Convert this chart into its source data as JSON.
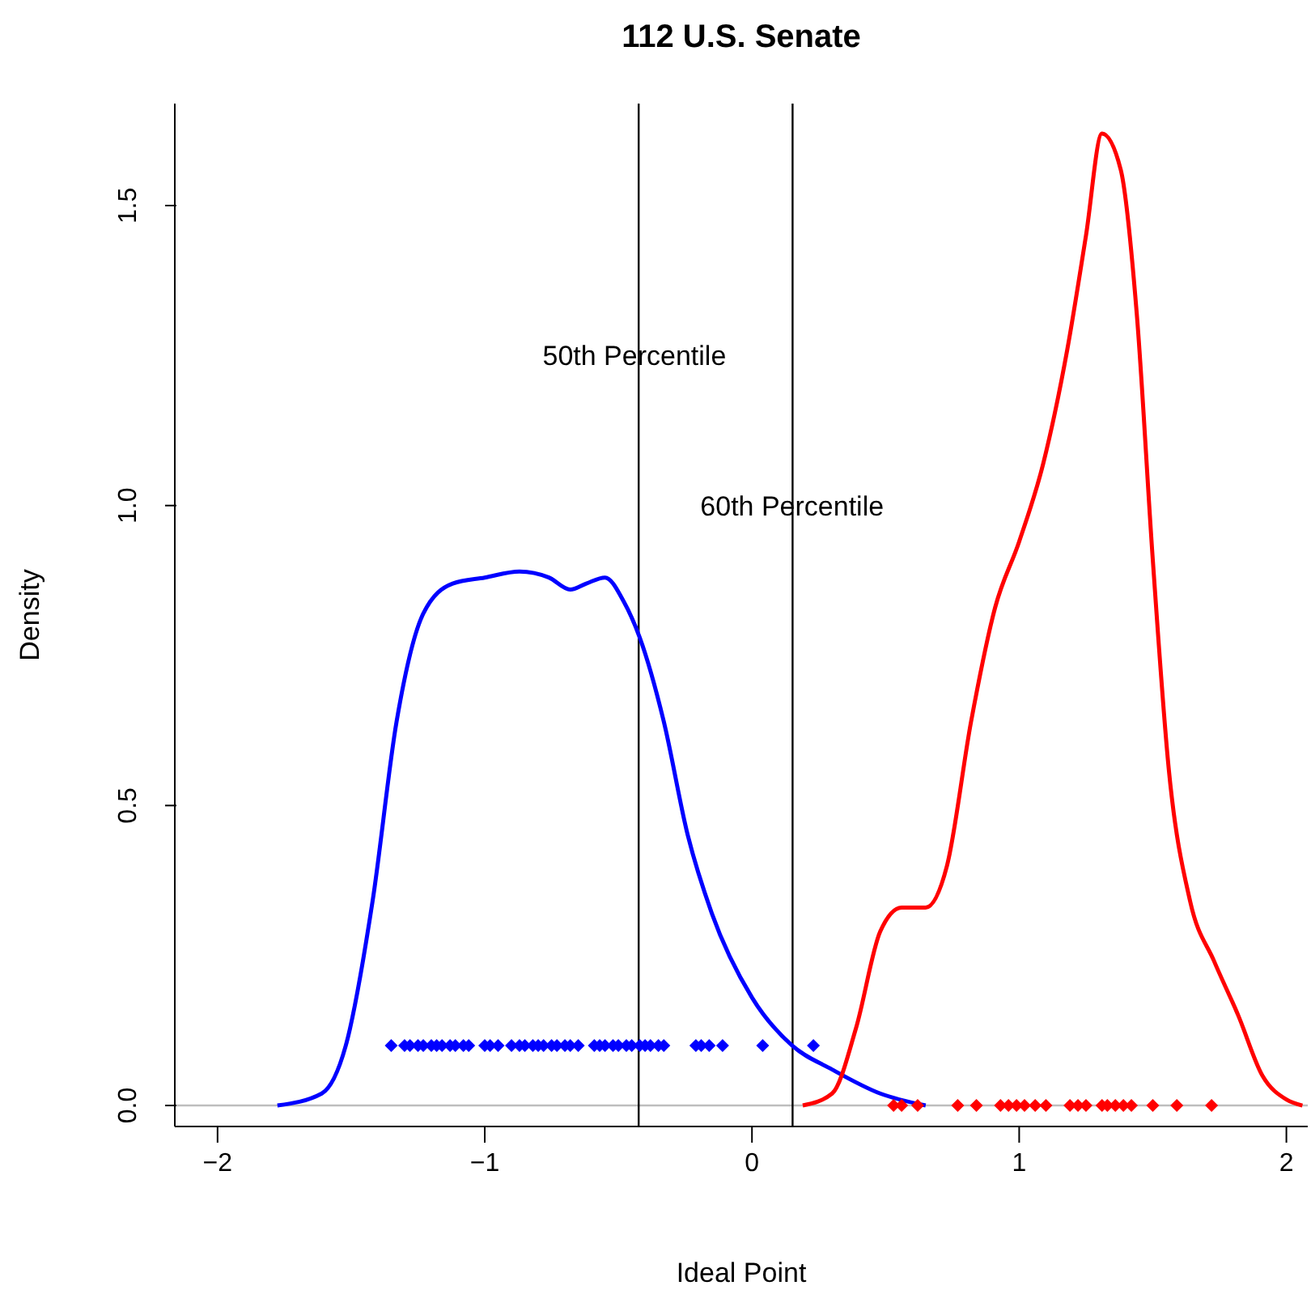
{
  "chart_data": {
    "type": "line",
    "title": "112 U.S. Senate",
    "xlabel": "Ideal Point",
    "ylabel": "Density",
    "xlim": [
      -2.16,
      2.08
    ],
    "xticks": [
      {
        "value": -2,
        "label": "−2"
      },
      {
        "value": -1,
        "label": "−1"
      },
      0,
      1,
      2
    ],
    "ylim": [
      -0.035,
      1.67
    ],
    "yticks": [
      {
        "value": 0,
        "label": "0.0"
      },
      {
        "value": 0.5,
        "label": "0.5"
      },
      {
        "value": 1,
        "label": "1.0"
      },
      {
        "value": 1.5,
        "label": "1.5"
      }
    ],
    "series": [
      {
        "color": "#0000ff",
        "marker": "none",
        "x": [
          -1.776,
          -1.61,
          -1.52,
          -1.42,
          -1.33,
          -1.23,
          -1.12,
          -1.0,
          -0.87,
          -0.76,
          -0.68,
          -0.62,
          -0.55,
          -0.48,
          -0.42,
          -0.33,
          -0.24,
          -0.15,
          0,
          0.15,
          0.3,
          0.48,
          0.65
        ],
        "values": [
          0,
          0.02,
          0.1,
          0.34,
          0.64,
          0.82,
          0.87,
          0.88,
          0.89,
          0.88,
          0.86,
          0.87,
          0.88,
          0.84,
          0.78,
          0.64,
          0.45,
          0.32,
          0.18,
          0.1,
          0.06,
          0.02,
          0
        ]
      },
      {
        "color": "#ff0000",
        "marker": "none",
        "x": [
          0.19,
          0.3,
          0.39,
          0.48,
          0.56,
          0.65,
          0.73,
          0.82,
          0.91,
          1.0,
          1.09,
          1.18,
          1.25,
          1.31,
          1.38,
          1.44,
          1.5,
          1.56,
          1.64,
          1.73,
          1.82,
          1.91,
          2.0,
          2.06
        ],
        "values": [
          0,
          0.02,
          0.13,
          0.29,
          0.33,
          0.33,
          0.4,
          0.64,
          0.83,
          0.94,
          1.07,
          1.26,
          1.45,
          1.62,
          1.56,
          1.32,
          0.91,
          0.56,
          0.34,
          0.24,
          0.15,
          0.05,
          0.01,
          0
        ]
      },
      {
        "type": "scatter",
        "color": "#0000ff",
        "marker": "diamond",
        "x": [
          -1.35,
          -1.3,
          -1.28,
          -1.25,
          -1.23,
          -1.2,
          -1.18,
          -1.16,
          -1.13,
          -1.11,
          -1.08,
          -1.06,
          -1.0,
          -0.98,
          -0.95,
          -0.9,
          -0.87,
          -0.85,
          -0.82,
          -0.8,
          -0.78,
          -0.75,
          -0.73,
          -0.7,
          -0.68,
          -0.65,
          -0.59,
          -0.57,
          -0.55,
          -0.52,
          -0.5,
          -0.47,
          -0.45,
          -0.42,
          -0.4,
          -0.38,
          -0.35,
          -0.33,
          -0.21,
          -0.19,
          -0.16,
          -0.11,
          0.04,
          0.23
        ],
        "values": [
          0.1,
          0.1,
          0.1,
          0.1,
          0.1,
          0.1,
          0.1,
          0.1,
          0.1,
          0.1,
          0.1,
          0.1,
          0.1,
          0.1,
          0.1,
          0.1,
          0.1,
          0.1,
          0.1,
          0.1,
          0.1,
          0.1,
          0.1,
          0.1,
          0.1,
          0.1,
          0.1,
          0.1,
          0.1,
          0.1,
          0.1,
          0.1,
          0.1,
          0.1,
          0.1,
          0.1,
          0.1,
          0.1,
          0.1,
          0.1,
          0.1,
          0.1,
          0.1,
          0.1
        ]
      },
      {
        "type": "scatter",
        "color": "#ff0000",
        "marker": "diamond",
        "x": [
          0.53,
          0.56,
          0.62,
          0.77,
          0.84,
          0.93,
          0.96,
          0.99,
          1.02,
          1.06,
          1.1,
          1.19,
          1.22,
          1.25,
          1.31,
          1.33,
          1.36,
          1.39,
          1.42,
          1.5,
          1.59,
          1.72
        ],
        "values": [
          0,
          0,
          0,
          0,
          0,
          0,
          0,
          0,
          0,
          0,
          0,
          0,
          0,
          0,
          0,
          0,
          0,
          0,
          0,
          0,
          0,
          0
        ]
      }
    ],
    "ref_lines": [
      {
        "axis": "y",
        "value": 0,
        "color": "#bebebe",
        "line_style": "solid"
      },
      {
        "axis": "x",
        "value": -0.424,
        "color": "#000000",
        "line_style": "solid"
      },
      {
        "axis": "x",
        "value": 0.152,
        "color": "#000000",
        "line_style": "solid"
      }
    ],
    "annotations": [
      {
        "text": "50th Percentile",
        "x": -0.44,
        "y": 1.25
      },
      {
        "text": "60th Percentile",
        "x": 0.15,
        "y": 1.0
      }
    ]
  }
}
